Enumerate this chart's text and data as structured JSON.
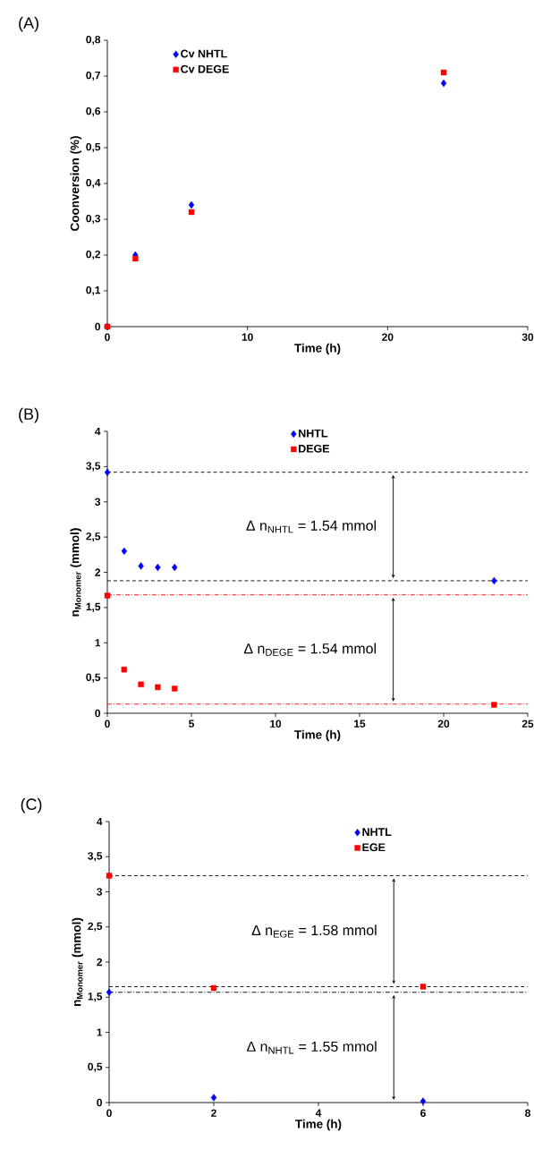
{
  "chart_data": [
    {
      "type": "scatter",
      "title": "(A)",
      "xlabel": "Time (h)",
      "ylabel": "Coonversion (%)",
      "x": [
        0,
        2,
        6,
        24
      ],
      "series": [
        {
          "name": "Cv NHTL",
          "color": "#0000ff",
          "marker": "diamond",
          "values": [
            0,
            0.2,
            0.34,
            0.68
          ]
        },
        {
          "name": "Cv DEGE",
          "color": "#ff0000",
          "marker": "square",
          "values": [
            0,
            0.19,
            0.32,
            0.71
          ]
        }
      ],
      "xlim": [
        0,
        30
      ],
      "xticks": [
        0,
        10,
        20,
        30
      ],
      "ylim": [
        0,
        0.8
      ],
      "yticks": [
        0,
        {
          "value": 0.1,
          "label": "0,1"
        },
        {
          "value": 0.2,
          "label": "0,2"
        },
        {
          "value": 0.3,
          "label": "0,3"
        },
        {
          "value": 0.4,
          "label": "0,4"
        },
        {
          "value": 0.5,
          "label": "0,5"
        },
        {
          "value": 0.6,
          "label": "0,6"
        },
        {
          "value": 0.7,
          "label": "0,7"
        },
        {
          "value": 0.8,
          "label": "0,8"
        }
      ],
      "legend": "top left",
      "grid": false
    },
    {
      "type": "scatter",
      "title": "(B)",
      "xlabel": "Time (h)",
      "ylabel": "n$_{Monomer}$ (mmol)",
      "x": [
        0,
        1,
        2,
        3,
        4,
        23
      ],
      "series": [
        {
          "name": "NHTL",
          "color": "#0000ff",
          "marker": "diamond",
          "values": [
            3.42,
            2.3,
            2.09,
            2.07,
            2.07,
            1.88
          ]
        },
        {
          "name": "DEGE",
          "color": "#ff0000",
          "marker": "square",
          "values": [
            1.67,
            0.62,
            0.41,
            0.37,
            0.35,
            0.12
          ]
        }
      ],
      "xlim": [
        0,
        25
      ],
      "xticks": [
        0,
        5,
        10,
        15,
        20,
        25
      ],
      "ylim": [
        0,
        4
      ],
      "yticks": [
        0,
        {
          "value": 0.5,
          "label": "0,5"
        },
        1,
        {
          "value": 1.5,
          "label": "1,5"
        },
        2,
        {
          "value": 2.5,
          "label": "2,5"
        },
        3,
        {
          "value": 3.5,
          "label": "3,5"
        },
        4
      ],
      "ref_lines": [
        {
          "axis": "y",
          "value": 3.42,
          "color": "#000000",
          "line_style": "dashed"
        },
        {
          "axis": "y",
          "value": 1.88,
          "color": "#000000",
          "line_style": "dashed"
        },
        {
          "axis": "y",
          "value": 1.68,
          "color": "#ff0000",
          "line_style": "dashdot"
        },
        {
          "axis": "y",
          "value": 0.13,
          "color": "#ff0000",
          "line_style": "dashdot"
        }
      ],
      "annotations": [
        "Δ n$_{NHTL}$ = 1.54 mmol",
        "Δ n$_{DEGE}$ = 1.54 mmol"
      ],
      "legend": "top",
      "grid": false
    },
    {
      "type": "scatter",
      "title": "(C)",
      "xlabel": "Time (h)",
      "ylabel": "n$_{Monomer}$ (mmol)",
      "x": [
        0,
        2,
        6
      ],
      "series": [
        {
          "name": "NHTL",
          "color": "#0000ff",
          "marker": "diamond",
          "values": [
            1.57,
            0.07,
            0.02
          ]
        },
        {
          "name": "EGE",
          "color": "#ff0000",
          "marker": "square",
          "values": [
            3.23,
            1.63,
            1.65
          ]
        }
      ],
      "xlim": [
        0,
        8
      ],
      "xticks": [
        0,
        2,
        4,
        6,
        8
      ],
      "ylim": [
        0,
        4
      ],
      "yticks": [
        0,
        {
          "value": 0.5,
          "label": "0,5"
        },
        1,
        {
          "value": 1.5,
          "label": "1,5"
        },
        2,
        {
          "value": 2.5,
          "label": "2,5"
        },
        3,
        {
          "value": 3.5,
          "label": "3,5"
        },
        4
      ],
      "ref_lines": [
        {
          "axis": "y",
          "value": 3.23,
          "color": "#000000",
          "line_style": "dashed"
        },
        {
          "axis": "y",
          "value": 1.65,
          "color": "#000000",
          "line_style": "dashed"
        },
        {
          "axis": "y",
          "value": 1.57,
          "color": "#000000",
          "line_style": "dashdot"
        }
      ],
      "annotations": [
        "Δ n$_{EGE}$ = 1.58 mmol",
        "Δ n$_{NHTL}$ = 1.55 mmol"
      ],
      "legend": "top right",
      "grid": false
    }
  ]
}
